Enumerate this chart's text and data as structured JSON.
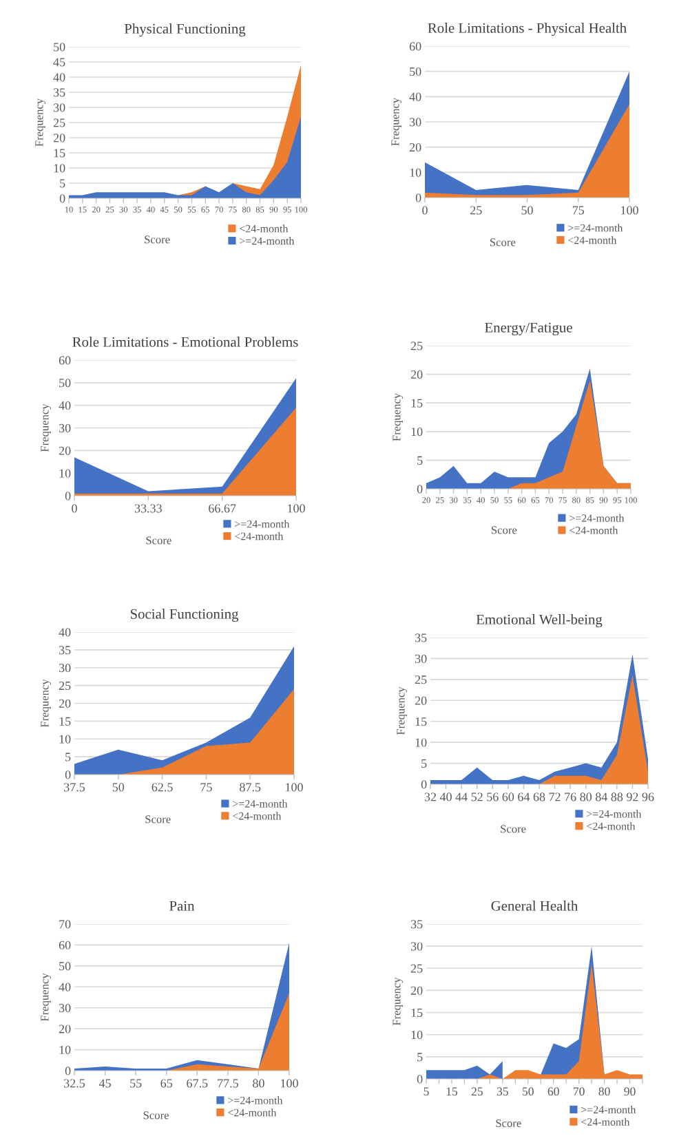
{
  "chart_data": [
    {
      "type": "area",
      "title": "Physical Functioning",
      "xlabel": "Score",
      "ylabel": "Frequency",
      "categories": [
        "10",
        "15",
        "20",
        "25",
        "30",
        "35",
        "40",
        "45",
        "50",
        "55",
        "65",
        "70",
        "75",
        "80",
        "85",
        "90",
        "95",
        "100"
      ],
      "series": [
        {
          "name": "<24-month",
          "color": "#ed7d31",
          "values": [
            null,
            null,
            null,
            null,
            null,
            null,
            null,
            null,
            1,
            2,
            4,
            null,
            5,
            4,
            3,
            11,
            27,
            44
          ]
        },
        {
          "name": ">=24-month",
          "color": "#4472c4",
          "values": [
            1,
            1,
            2,
            2,
            2,
            2,
            2,
            2,
            1,
            1,
            4,
            2,
            5,
            2,
            1,
            6,
            12,
            27
          ]
        }
      ],
      "ylim": [
        0,
        50
      ],
      "yticks": [
        0,
        5,
        10,
        15,
        20,
        25,
        30,
        35,
        40,
        45,
        50
      ],
      "grid": "y",
      "legend": "bottom"
    },
    {
      "type": "area",
      "title": "Role Limitations - Physical Health",
      "xlabel": "Score",
      "ylabel": "Frequency",
      "categories": [
        "0",
        "25",
        "50",
        "75",
        "100"
      ],
      "series": [
        {
          "name": ">=24-month",
          "color": "#4472c4",
          "values": [
            14,
            3,
            5,
            3,
            50
          ]
        },
        {
          "name": "<24-month",
          "color": "#ed7d31",
          "values": [
            2,
            1,
            1,
            2,
            37
          ]
        }
      ],
      "ylim": [
        0,
        60
      ],
      "yticks": [
        0,
        10,
        20,
        30,
        40,
        50,
        60
      ],
      "grid": "y",
      "legend": "bottom"
    },
    {
      "type": "area",
      "title": "Role Limitations - Emotional Problems",
      "xlabel": "Score",
      "ylabel": "Frequency",
      "categories": [
        "0",
        "33.33",
        "66.67",
        "100"
      ],
      "series": [
        {
          "name": ">=24-month",
          "color": "#4472c4",
          "values": [
            17,
            2,
            4,
            52
          ]
        },
        {
          "name": "<24-month",
          "color": "#ed7d31",
          "values": [
            1,
            1,
            1,
            39
          ]
        }
      ],
      "ylim": [
        0,
        60
      ],
      "yticks": [
        0,
        10,
        20,
        30,
        40,
        50,
        60
      ],
      "grid": "y",
      "legend": "bottom"
    },
    {
      "type": "area",
      "title": "Energy/Fatigue",
      "xlabel": "Score",
      "ylabel": "Frequency",
      "categories": [
        "20",
        "25",
        "30",
        "35",
        "40",
        "50",
        "55",
        "60",
        "65",
        "70",
        "75",
        "80",
        "85",
        "90",
        "95",
        "100"
      ],
      "series": [
        {
          "name": ">=24-month",
          "color": "#4472c4",
          "values": [
            1,
            2,
            4,
            1,
            1,
            3,
            2,
            2,
            2,
            8,
            10,
            13,
            21,
            4,
            1,
            1
          ]
        },
        {
          "name": "<24-month",
          "color": "#ed7d31",
          "values": [
            null,
            null,
            null,
            null,
            null,
            null,
            0,
            1,
            1,
            2,
            3,
            11,
            19,
            4,
            1,
            1
          ]
        }
      ],
      "ylim": [
        0,
        25
      ],
      "yticks": [
        0,
        5,
        10,
        15,
        20,
        25
      ],
      "grid": "y",
      "legend": "bottom"
    },
    {
      "type": "area",
      "title": "Social Functioning",
      "xlabel": "Score",
      "ylabel": "Frequency",
      "categories": [
        "37.5",
        "50",
        "62.5",
        "75",
        "87.5",
        "100"
      ],
      "series": [
        {
          "name": ">=24-month",
          "color": "#4472c4",
          "values": [
            3,
            7,
            4,
            9,
            16,
            36
          ]
        },
        {
          "name": "<24-month",
          "color": "#ed7d31",
          "values": [
            0,
            0,
            2,
            8,
            9,
            24
          ]
        }
      ],
      "ylim": [
        0,
        40
      ],
      "yticks": [
        0,
        5,
        10,
        15,
        20,
        25,
        30,
        35,
        40
      ],
      "grid": "y",
      "legend": "bottom"
    },
    {
      "type": "area",
      "title": "Emotional Well-being",
      "xlabel": "Score",
      "ylabel": "Frequency",
      "categories": [
        "32",
        "40",
        "44",
        "52",
        "56",
        "60",
        "64",
        "68",
        "72",
        "76",
        "80",
        "84",
        "88",
        "92",
        "96"
      ],
      "series": [
        {
          "name": ">=24-month",
          "color": "#4472c4",
          "values": [
            1,
            1,
            1,
            4,
            1,
            1,
            2,
            1,
            3,
            4,
            5,
            4,
            10,
            31,
            6
          ]
        },
        {
          "name": "<24-month",
          "color": "#ed7d31",
          "values": [
            null,
            null,
            null,
            null,
            null,
            null,
            null,
            0,
            2,
            2,
            2,
            1,
            7,
            26,
            3
          ]
        }
      ],
      "ylim": [
        0,
        35
      ],
      "yticks": [
        0,
        5,
        10,
        15,
        20,
        25,
        30,
        35
      ],
      "grid": "y",
      "legend": "bottom"
    },
    {
      "type": "area",
      "title": "Pain",
      "xlabel": "Score",
      "ylabel": "Frequency",
      "categories": [
        "32.5",
        "45",
        "55",
        "65",
        "67.5",
        "77.5",
        "80",
        "100"
      ],
      "series": [
        {
          "name": ">=24-month",
          "color": "#4472c4",
          "values": [
            1,
            2,
            1,
            1,
            5,
            3,
            1,
            61
          ]
        },
        {
          "name": "<24-month",
          "color": "#ed7d31",
          "values": [
            null,
            null,
            null,
            0,
            3,
            2,
            1,
            37
          ]
        }
      ],
      "ylim": [
        0,
        70
      ],
      "yticks": [
        0,
        10,
        20,
        30,
        40,
        50,
        60,
        70
      ],
      "grid": "y",
      "legend": "bottom"
    },
    {
      "type": "area",
      "title": "General Health",
      "xlabel": "Score",
      "ylabel": "Frequency",
      "categories": [
        "5",
        null,
        "15",
        null,
        "25",
        null,
        "35",
        null,
        "50",
        null,
        "60",
        null,
        "70",
        null,
        "80",
        null,
        "90",
        null
      ],
      "series": [
        {
          "name": ">=24-month",
          "color": "#4472c4",
          "values": [
            2,
            2,
            2,
            2,
            3,
            1,
            4,
            null,
            null,
            1,
            8,
            7,
            9,
            30,
            1,
            null,
            null,
            null
          ]
        },
        {
          "name": "<24-month",
          "color": "#ed7d31",
          "values": [
            null,
            null,
            null,
            null,
            0,
            1,
            0,
            2,
            2,
            1,
            1,
            1,
            4,
            26,
            1,
            2,
            1,
            1
          ]
        }
      ],
      "ylim": [
        0,
        35
      ],
      "yticks": [
        0,
        5,
        10,
        15,
        20,
        25,
        30,
        35
      ],
      "grid": "y",
      "legend": "bottom"
    }
  ]
}
